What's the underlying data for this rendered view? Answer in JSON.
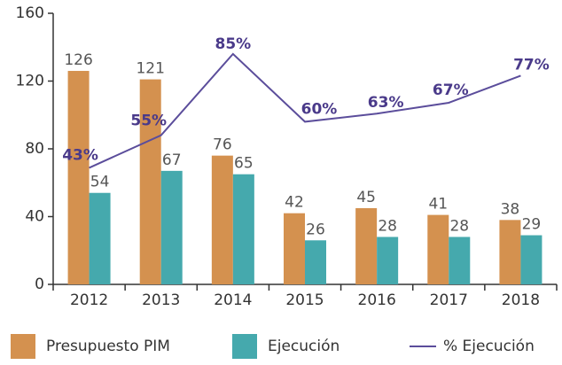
{
  "chart_data": {
    "type": "bar",
    "categories": [
      "2012",
      "2013",
      "2014",
      "2015",
      "2016",
      "2017",
      "2018"
    ],
    "series": [
      {
        "name": "Presupuesto PIM",
        "color": "#d4914f",
        "values": [
          126,
          121,
          76,
          42,
          45,
          41,
          38
        ]
      },
      {
        "name": "Ejecución",
        "color": "#45a9ad",
        "values": [
          54,
          67,
          65,
          26,
          28,
          28,
          29
        ]
      },
      {
        "name": "% Ejecución",
        "color": "#5b4d9b",
        "type": "line",
        "axis": "y2",
        "values": [
          43,
          55,
          85,
          60,
          63,
          67,
          77
        ],
        "value_labels": [
          "43%",
          "55%",
          "85%",
          "60%",
          "63%",
          "67%",
          "77%"
        ]
      }
    ],
    "ylim": [
      0,
      160
    ],
    "yticks": [
      0,
      40,
      80,
      120,
      160
    ],
    "y2lim": [
      0,
      100
    ]
  }
}
